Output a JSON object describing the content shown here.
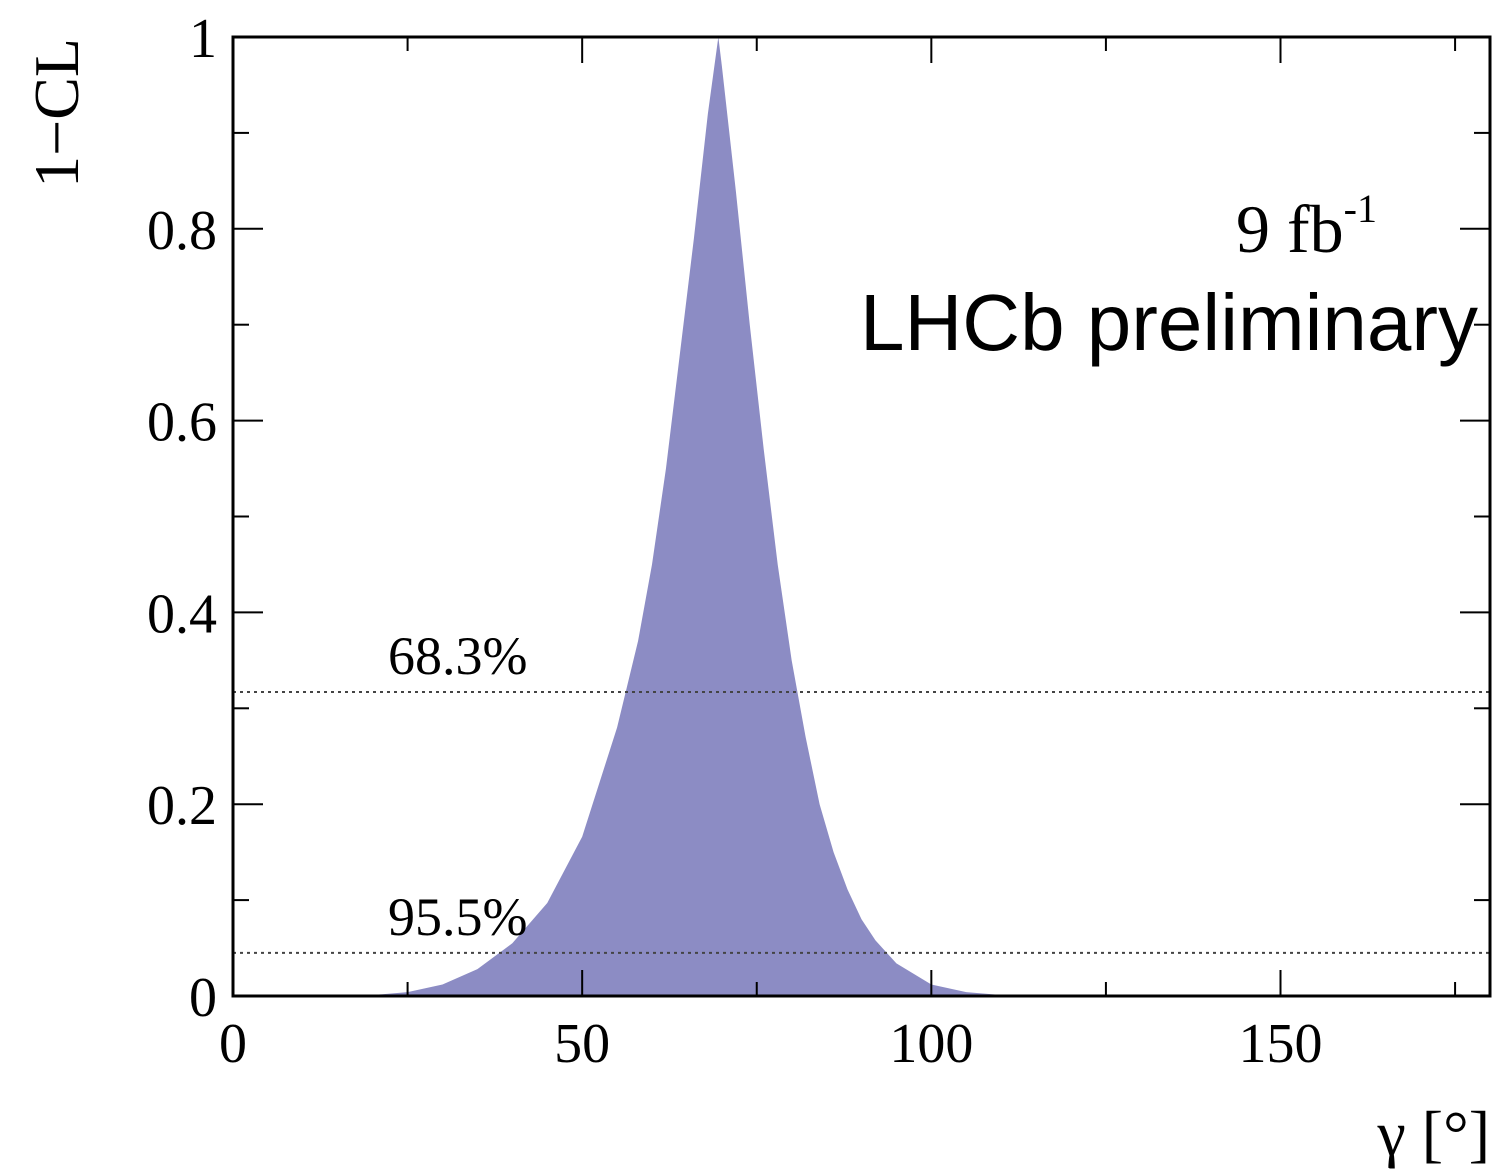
{
  "chart_data": {
    "type": "area",
    "xlabel": "γ [°]",
    "ylabel": "1−CL",
    "xlim": [
      0,
      180
    ],
    "ylim": [
      0,
      1
    ],
    "x_ticks": [
      0,
      50,
      100,
      150
    ],
    "y_ticks": [
      0,
      0.2,
      0.4,
      0.6,
      0.8,
      1
    ],
    "x_tick_labels": [
      "0",
      "50",
      "100",
      "150"
    ],
    "y_tick_labels": [
      "0",
      "0.2",
      "0.4",
      "0.6",
      "0.8",
      "1"
    ],
    "grid": false,
    "series": [
      {
        "color": "#8c8cc4",
        "x": [
          0,
          10,
          20,
          25,
          30,
          35,
          40,
          45,
          50,
          55,
          58,
          60,
          62,
          64,
          66,
          68,
          69.5,
          70,
          72,
          74,
          76,
          78,
          80,
          82,
          84,
          86,
          88,
          90,
          92,
          95,
          100,
          105,
          110,
          120,
          130,
          180
        ],
        "y": [
          0,
          0.0003,
          0.001,
          0.004,
          0.012,
          0.028,
          0.055,
          0.097,
          0.166,
          0.28,
          0.37,
          0.45,
          0.55,
          0.67,
          0.79,
          0.92,
          1.0,
          0.97,
          0.84,
          0.7,
          0.57,
          0.45,
          0.35,
          0.27,
          0.2,
          0.15,
          0.111,
          0.08,
          0.058,
          0.034,
          0.012,
          0.004,
          0.001,
          0.0002,
          0,
          0
        ]
      }
    ],
    "reference_lines": [
      {
        "y": 0.317,
        "label": "68.3%"
      },
      {
        "y": 0.045,
        "label": "95.5%"
      }
    ],
    "annotations": {
      "luminosity_base": "9 fb",
      "luminosity_exp": "-1",
      "experiment": "LHCb preliminary"
    }
  }
}
